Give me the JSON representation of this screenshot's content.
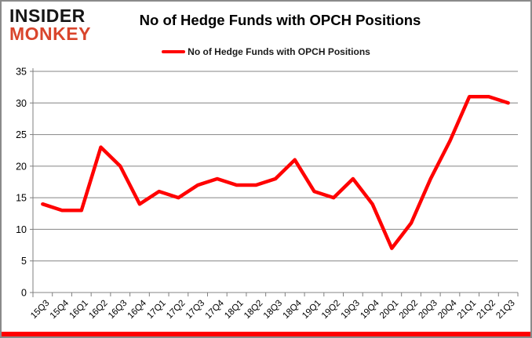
{
  "header": {
    "logo_line1": "INSIDER",
    "logo_line2": "MONKEY",
    "title": "No of Hedge Funds with OPCH Positions"
  },
  "legend": {
    "label": "No of Hedge Funds with OPCH Positions"
  },
  "colors": {
    "line": "#ff0000",
    "grid": "#848484",
    "axis": "#7f7f7f",
    "tick_label": "#000000",
    "logo_black": "#161616",
    "logo_red": "#d9452c",
    "frame_border": "#8a8a8a",
    "bottom_bar": "#ff0000"
  },
  "chart_data": {
    "type": "line",
    "title": "No of Hedge Funds with OPCH Positions",
    "series_name": "No of Hedge Funds with OPCH Positions",
    "categories": [
      "15Q3",
      "15Q4",
      "16Q1",
      "16Q2",
      "16Q3",
      "16Q4",
      "17Q1",
      "17Q2",
      "17Q3",
      "17Q4",
      "18Q1",
      "18Q2",
      "18Q3",
      "18Q4",
      "19Q1",
      "19Q2",
      "19Q3",
      "19Q4",
      "20Q1",
      "20Q2",
      "20Q3",
      "20Q4",
      "21Q1",
      "21Q2",
      "21Q3"
    ],
    "values": [
      14,
      13,
      13,
      23,
      20,
      14,
      16,
      15,
      17,
      18,
      17,
      17,
      18,
      21,
      16,
      15,
      18,
      14,
      7,
      11,
      18,
      24,
      31,
      31,
      30
    ],
    "xlabel": "",
    "ylabel": "",
    "ylim": [
      0,
      35
    ],
    "ytick_step": 5,
    "yticks": [
      0,
      5,
      10,
      15,
      20,
      25,
      30,
      35
    ],
    "grid": true,
    "legend_position": "top"
  }
}
